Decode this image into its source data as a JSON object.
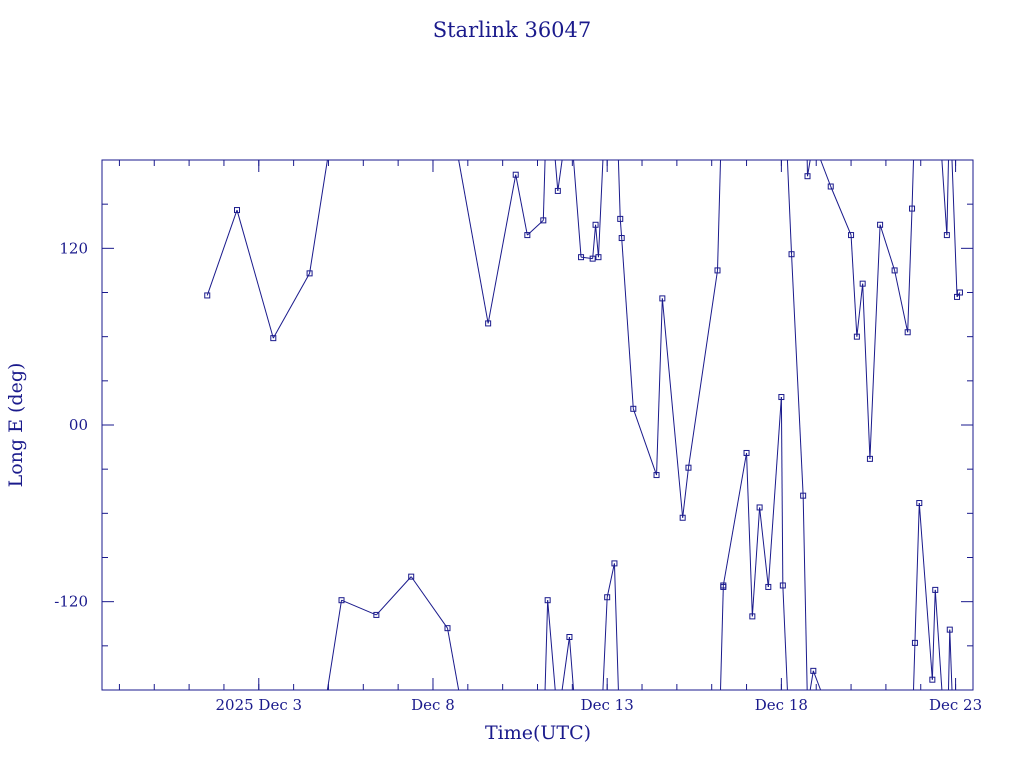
{
  "chart_data": {
    "type": "line",
    "title": "Starlink 36047",
    "xlabel": "Time(UTC)",
    "ylabel": "Long E (deg)",
    "x_tick_labels": [
      "2025 Dec  3",
      "Dec  8",
      "Dec 13",
      "Dec 18",
      "Dec 23"
    ],
    "x_tick_values": [
      "2025-12-03",
      "2025-12-08",
      "2025-12-13",
      "2025-12-18",
      "2025-12-23"
    ],
    "y_tick_labels": [
      "-120",
      "00",
      "120"
    ],
    "y_tick_values": [
      -120,
      0,
      120
    ],
    "xlim": [
      "2025-11-28T12:00",
      "2025-12-23T12:00"
    ],
    "ylim": [
      -180,
      180
    ],
    "grid": false,
    "color": "#1a1a8c",
    "series": [
      {
        "points": [
          [
            "2025-12-01T12:30",
            88
          ],
          [
            "2025-12-02T09:00",
            146
          ],
          [
            "2025-12-03T10:00",
            59
          ],
          [
            "2025-12-04T11:00",
            103
          ],
          [
            "2025-12-05T09:00",
            -119
          ],
          [
            "2025-12-06T09:00",
            -129
          ],
          [
            "2025-12-07T09:00",
            -103
          ],
          [
            "2025-12-08T10:00",
            -138
          ],
          [
            "2025-12-09T14:00",
            69
          ],
          [
            "2025-12-10T09:00",
            170
          ],
          [
            "2025-12-10T17:00",
            129
          ],
          [
            "2025-12-11T04:00",
            139
          ],
          [
            "2025-12-11T07:00",
            -119
          ],
          [
            "2025-12-11T14:00",
            159
          ],
          [
            "2025-12-11T22:00",
            -144
          ],
          [
            "2025-12-12T06:00",
            114
          ],
          [
            "2025-12-12T14:00",
            113
          ],
          [
            "2025-12-12T16:00",
            136
          ],
          [
            "2025-12-12T18:00",
            114
          ],
          [
            "2025-12-13T00:00",
            -117
          ],
          [
            "2025-12-13T05:00",
            -94
          ],
          [
            "2025-12-13T09:00",
            140
          ],
          [
            "2025-12-13T10:00",
            127
          ],
          [
            "2025-12-13T18:00",
            11
          ],
          [
            "2025-12-14T10:00",
            -34
          ],
          [
            "2025-12-14T14:00",
            86
          ],
          [
            "2025-12-15T04:00",
            -63
          ],
          [
            "2025-12-15T08:00",
            -29
          ],
          [
            "2025-12-16T04:00",
            105
          ],
          [
            "2025-12-16T08:00",
            -110
          ],
          [
            "2025-12-16T08:00",
            -109
          ],
          [
            "2025-12-17T00:00",
            -19
          ],
          [
            "2025-12-17T04:00",
            -130
          ],
          [
            "2025-12-17T09:00",
            -56
          ],
          [
            "2025-12-17T15:00",
            -110
          ],
          [
            "2025-12-18T00:00",
            19
          ],
          [
            "2025-12-18T01:00",
            -109
          ],
          [
            "2025-12-18T07:00",
            116
          ],
          [
            "2025-12-18T15:00",
            -48
          ],
          [
            "2025-12-18T18:00",
            169
          ],
          [
            "2025-12-18T22:00",
            -167
          ],
          [
            "2025-12-19T10:00",
            162
          ],
          [
            "2025-12-20T00:00",
            129
          ],
          [
            "2025-12-20T04:00",
            60
          ],
          [
            "2025-12-20T08:00",
            96
          ],
          [
            "2025-12-20T13:00",
            -23
          ],
          [
            "2025-12-20T20:00",
            136
          ],
          [
            "2025-12-21T06:00",
            105
          ],
          [
            "2025-12-21T15:00",
            63
          ],
          [
            "2025-12-21T18:00",
            147
          ],
          [
            "2025-12-21T20:00",
            -148
          ],
          [
            "2025-12-21T23:00",
            -53
          ],
          [
            "2025-12-22T08:00",
            -173
          ],
          [
            "2025-12-22T10:00",
            -112
          ],
          [
            "2025-12-22T18:00",
            129
          ],
          [
            "2025-12-22T20:00",
            -139
          ],
          [
            "2025-12-23T01:00",
            87
          ],
          [
            "2025-12-23T03:00",
            90
          ]
        ]
      }
    ]
  }
}
